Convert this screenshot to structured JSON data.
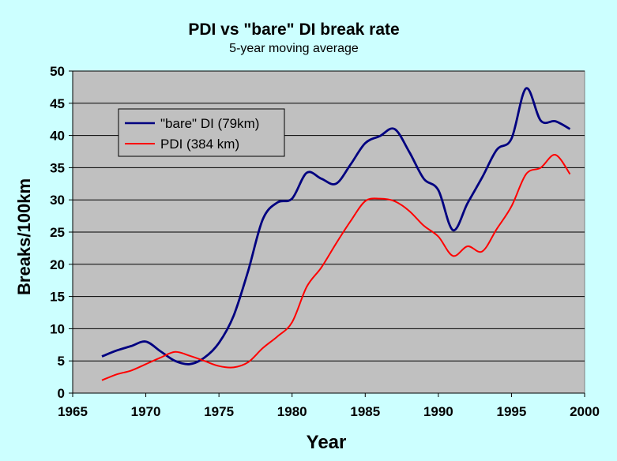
{
  "chart_data": {
    "type": "line",
    "title": "PDI vs \"bare\" DI break rate",
    "subtitle": "5-year moving average",
    "xlabel": "Year",
    "ylabel": "Breaks/100km",
    "xlim": [
      1965,
      2000
    ],
    "ylim": [
      0,
      50
    ],
    "x_ticks": [
      "1965",
      "1970",
      "1975",
      "1980",
      "1985",
      "1990",
      "1995",
      "2000"
    ],
    "y_ticks": [
      "0",
      "5",
      "10",
      "15",
      "20",
      "25",
      "30",
      "35",
      "40",
      "45",
      "50"
    ],
    "grid": true,
    "legend_position": "top-left",
    "colors": {
      "plot_bg": "#c0c0c0",
      "page_bg": "#ccffff"
    },
    "series": [
      {
        "name": "\"bare\" DI (79km)",
        "color": "#000080",
        "x": [
          1967,
          1968,
          1969,
          1970,
          1971,
          1972,
          1973,
          1974,
          1975,
          1976,
          1977,
          1978,
          1979,
          1980,
          1981,
          1982,
          1983,
          1984,
          1985,
          1986,
          1987,
          1988,
          1989,
          1990,
          1991,
          1992,
          1993,
          1994,
          1995,
          1996,
          1997,
          1998,
          1999
        ],
        "values": [
          5.7,
          6.6,
          7.3,
          8.0,
          6.5,
          5.0,
          4.5,
          5.5,
          7.8,
          12.0,
          19.0,
          27.0,
          29.6,
          30.2,
          34.2,
          33.3,
          32.5,
          35.5,
          38.8,
          39.9,
          41.0,
          37.5,
          33.3,
          31.5,
          25.3,
          29.5,
          33.5,
          37.8,
          39.5,
          47.3,
          42.3,
          42.2,
          41.0
        ]
      },
      {
        "name": "PDI (384 km)",
        "color": "#ff0000",
        "x": [
          1967,
          1968,
          1969,
          1970,
          1971,
          1972,
          1973,
          1974,
          1975,
          1976,
          1977,
          1978,
          1979,
          1980,
          1981,
          1982,
          1983,
          1984,
          1985,
          1986,
          1987,
          1988,
          1989,
          1990,
          1991,
          1992,
          1993,
          1994,
          1995,
          1996,
          1997,
          1998,
          1999
        ],
        "values": [
          2.0,
          2.9,
          3.5,
          4.5,
          5.5,
          6.4,
          5.8,
          5.0,
          4.2,
          4.0,
          4.8,
          7.0,
          8.8,
          11.0,
          16.5,
          19.5,
          23.2,
          26.7,
          29.8,
          30.2,
          29.8,
          28.3,
          26.0,
          24.3,
          21.3,
          22.8,
          22.0,
          25.5,
          29.0,
          34.0,
          35.0,
          37.0,
          34.0
        ]
      }
    ]
  }
}
